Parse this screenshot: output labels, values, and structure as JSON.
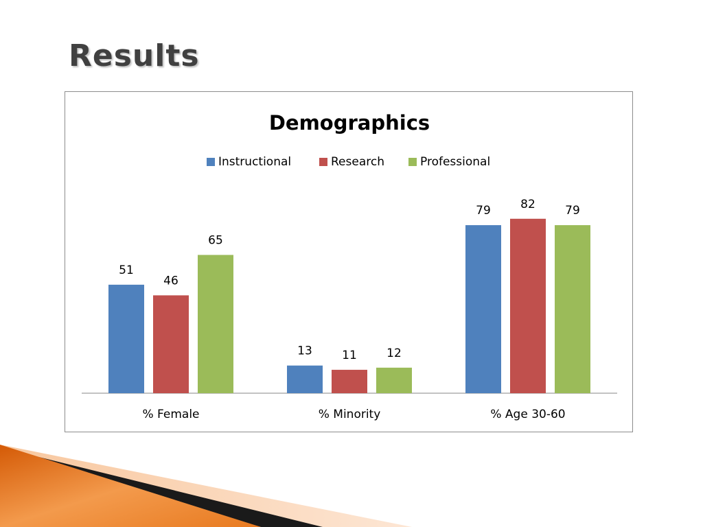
{
  "slide": {
    "title": "Results"
  },
  "colors": {
    "title_text": "#404040",
    "series": [
      "#4F81BD",
      "#C0504D",
      "#9BBB59"
    ],
    "axis_line": "#868686",
    "decor_orange": "#E46C0A",
    "decor_light": "#FBD4B4"
  },
  "chart_data": {
    "type": "bar",
    "title": "Demographics",
    "categories": [
      "% Female",
      "% Minority",
      "% Age 30-60"
    ],
    "series": [
      {
        "name": "Instructional",
        "values": [
          51,
          13,
          79
        ]
      },
      {
        "name": "Research",
        "values": [
          46,
          11,
          82
        ]
      },
      {
        "name": "Professional",
        "values": [
          65,
          12,
          79
        ]
      }
    ],
    "ylim": [
      0,
      90
    ],
    "grid": false,
    "legend_position": "top",
    "data_labels": true
  }
}
